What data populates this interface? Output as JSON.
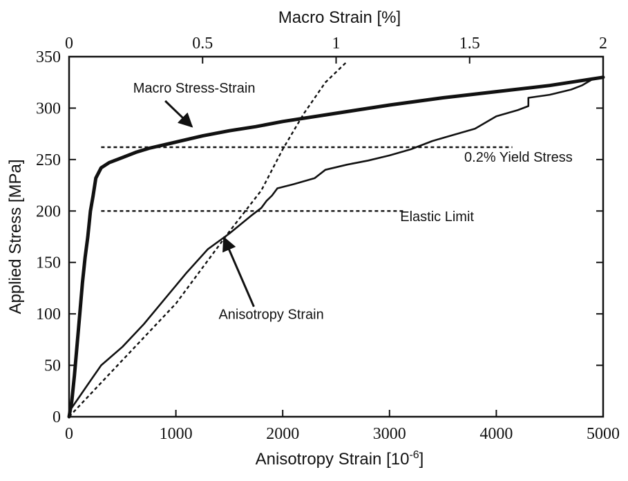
{
  "chart_data": {
    "type": "line",
    "title": "",
    "top_axis": {
      "label": "Macro Strain [%]",
      "ticks": [
        0,
        0.5,
        1,
        1.5,
        2
      ],
      "tick_labels": [
        "0",
        "0.5",
        "1",
        "1.5",
        "2"
      ],
      "range": [
        0,
        2
      ]
    },
    "bottom_axis": {
      "label": "Anisotropy Strain [10",
      "label_sup": "-6",
      "label_end": "]",
      "ticks": [
        0,
        1000,
        2000,
        3000,
        4000,
        5000
      ],
      "tick_labels": [
        "0",
        "1000",
        "2000",
        "3000",
        "4000",
        "5000"
      ],
      "range": [
        0,
        5000
      ]
    },
    "y_axis": {
      "label": "Applied Stress [MPa]",
      "ticks": [
        0,
        50,
        100,
        150,
        200,
        250,
        300,
        350
      ],
      "tick_labels": [
        "0",
        "50",
        "100",
        "150",
        "200",
        "250",
        "300",
        "350"
      ],
      "range": [
        0,
        350
      ]
    },
    "grid": false,
    "series": [
      {
        "name": "Macro Stress-Strain",
        "x_axis": "top",
        "style": "thick",
        "x": [
          0,
          0.01,
          0.02,
          0.03,
          0.04,
          0.05,
          0.06,
          0.07,
          0.08,
          0.09,
          0.1,
          0.12,
          0.15,
          0.2,
          0.25,
          0.3,
          0.4,
          0.5,
          0.6,
          0.7,
          0.8,
          1.0,
          1.2,
          1.4,
          1.6,
          1.8,
          2.0
        ],
        "y": [
          0,
          15,
          40,
          70,
          100,
          130,
          155,
          175,
          200,
          215,
          232,
          242,
          247,
          252,
          257,
          261,
          267,
          273,
          278,
          282,
          287,
          295,
          303,
          310,
          316,
          322,
          330
        ]
      },
      {
        "name": "Anisotropy Strain",
        "x_axis": "bottom",
        "style": "medium",
        "x": [
          0,
          100,
          200,
          300,
          500,
          700,
          900,
          1100,
          1300,
          1500,
          1700,
          1800,
          1850,
          1900,
          1950,
          2100,
          2300,
          2400,
          2600,
          2800,
          3000,
          3200,
          3400,
          3600,
          3800,
          4000,
          4200,
          4300,
          4300,
          4500,
          4700,
          4800,
          4900,
          5000
        ],
        "y": [
          5,
          20,
          35,
          50,
          68,
          90,
          115,
          140,
          163,
          178,
          195,
          203,
          210,
          215,
          222,
          226,
          232,
          240,
          245,
          249,
          254,
          260,
          268,
          274,
          280,
          292,
          298,
          302,
          310,
          313,
          318,
          322,
          328,
          330
        ]
      },
      {
        "name": "",
        "x_axis": "bottom",
        "style": "dashed",
        "x": [
          0,
          500,
          1000,
          1500,
          1800,
          2000,
          2200,
          2400,
          2600
        ],
        "y": [
          0,
          55,
          110,
          180,
          220,
          260,
          295,
          325,
          345
        ]
      },
      {
        "name": "",
        "x_axis": "bottom",
        "style": "dashed",
        "x": [
          300,
          4150
        ],
        "y": [
          262,
          262
        ]
      },
      {
        "name": "",
        "x_axis": "bottom",
        "style": "dashed",
        "x": [
          300,
          3150
        ],
        "y": [
          200,
          200
        ]
      }
    ],
    "annotations": [
      {
        "text": "Macro Stress-Strain",
        "x": 600,
        "y": 315,
        "arrow_from": [
          900,
          307
        ],
        "arrow_to": [
          1150,
          282
        ]
      },
      {
        "text": "0.2% Yield Stress",
        "x": 3700,
        "y": 248
      },
      {
        "text": "Elastic Limit",
        "x": 3100,
        "y": 190
      },
      {
        "text": "Anisotropy Strain",
        "x": 1400,
        "y": 95,
        "arrow_from": [
          1730,
          107
        ],
        "arrow_to": [
          1450,
          174
        ]
      }
    ]
  }
}
